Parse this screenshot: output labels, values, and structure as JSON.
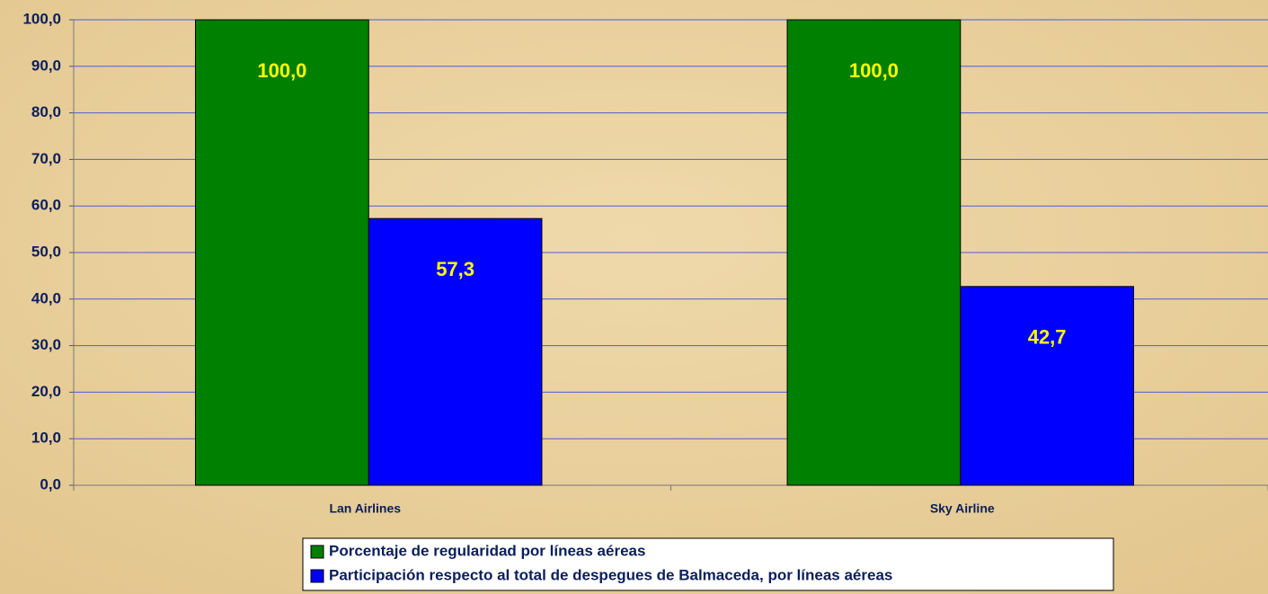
{
  "chart_data": {
    "type": "bar",
    "categories": [
      "Lan Airlines",
      "Sky Airline"
    ],
    "series": [
      {
        "name": "Porcentaje de regularidad por líneas aéreas",
        "color": "#008000",
        "values": [
          100,
          100
        ],
        "value_labels": [
          "100,0",
          "100,0"
        ]
      },
      {
        "name": "Participación respecto al total de despegues de Balmaceda, por líneas aéreas",
        "color": "#0000ff",
        "values": [
          57.3,
          42.7
        ],
        "value_labels": [
          "57,3",
          "42,7"
        ]
      }
    ],
    "ylim": [
      0,
      100
    ],
    "yticks": [
      {
        "value": 0,
        "label": "0,0"
      },
      {
        "value": 10,
        "label": "10,0"
      },
      {
        "value": 20,
        "label": "20,0"
      },
      {
        "value": 30,
        "label": "30,0"
      },
      {
        "value": 40,
        "label": "40,0"
      },
      {
        "value": 50,
        "label": "50,0"
      },
      {
        "value": 60,
        "label": "60,0"
      },
      {
        "value": 70,
        "label": "70,0"
      },
      {
        "value": 80,
        "label": "80,0"
      },
      {
        "value": 90,
        "label": "90,0"
      },
      {
        "value": 100,
        "label": "100,0"
      }
    ],
    "grid": true,
    "legend": "bottom"
  }
}
